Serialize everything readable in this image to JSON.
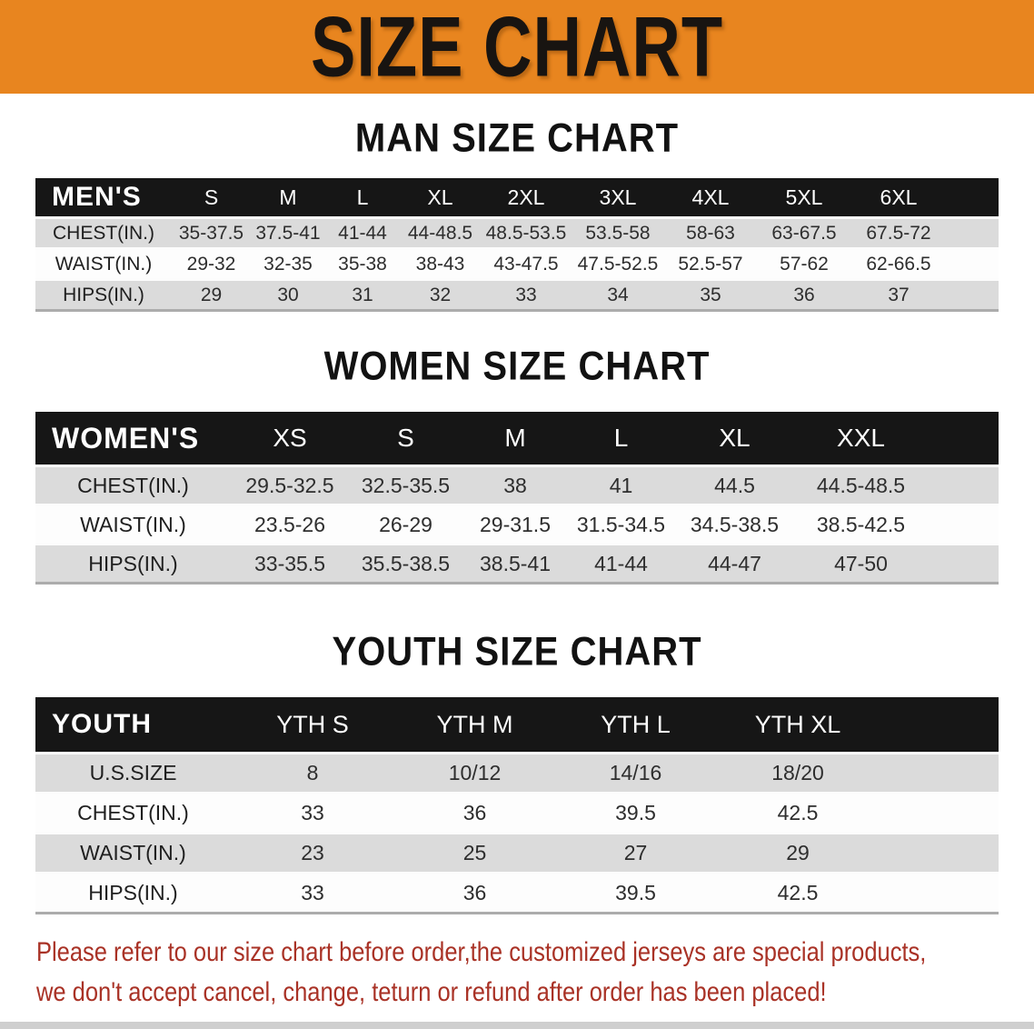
{
  "banner": {
    "title": "SIZE CHART"
  },
  "sections": [
    {
      "title": "MAN SIZE CHART",
      "table": {
        "header_label": "MEN'S",
        "sizes": [
          "S",
          "M",
          "L",
          "XL",
          "2XL",
          "3XL",
          "4XL",
          "5XL",
          "6XL"
        ],
        "rows": [
          {
            "label": "CHEST(IN.)",
            "values": [
              "35-37.5",
              "37.5-41",
              "41-44",
              "44-48.5",
              "48.5-53.5",
              "53.5-58",
              "58-63",
              "63-67.5",
              "67.5-72"
            ]
          },
          {
            "label": "WAIST(IN.)",
            "values": [
              "29-32",
              "32-35",
              "35-38",
              "38-43",
              "43-47.5",
              "47.5-52.5",
              "52.5-57",
              "57-62",
              "62-66.5"
            ]
          },
          {
            "label": "HIPS(IN.)",
            "values": [
              "29",
              "30",
              "31",
              "32",
              "33",
              "34",
              "35",
              "36",
              "37"
            ]
          }
        ]
      }
    },
    {
      "title": "WOMEN SIZE CHART",
      "table": {
        "header_label": "WOMEN'S",
        "sizes": [
          "XS",
          "S",
          "M",
          "L",
          "XL",
          "XXL"
        ],
        "rows": [
          {
            "label": "CHEST(IN.)",
            "values": [
              "29.5-32.5",
              "32.5-35.5",
              "38",
              "41",
              "44.5",
              "44.5-48.5"
            ]
          },
          {
            "label": "WAIST(IN.)",
            "values": [
              "23.5-26",
              "26-29",
              "29-31.5",
              "31.5-34.5",
              "34.5-38.5",
              "38.5-42.5"
            ]
          },
          {
            "label": "HIPS(IN.)",
            "values": [
              "33-35.5",
              "35.5-38.5",
              "38.5-41",
              "41-44",
              "44-47",
              "47-50"
            ]
          }
        ]
      }
    },
    {
      "title": "YOUTH SIZE CHART",
      "table": {
        "header_label": "YOUTH",
        "sizes": [
          "YTH S",
          "YTH M",
          "YTH L",
          "YTH XL"
        ],
        "rows": [
          {
            "label": "U.S.SIZE",
            "values": [
              "8",
              "10/12",
              "14/16",
              "18/20"
            ]
          },
          {
            "label": "CHEST(IN.)",
            "values": [
              "33",
              "36",
              "39.5",
              "42.5"
            ]
          },
          {
            "label": "WAIST(IN.)",
            "values": [
              "23",
              "25",
              "27",
              "29"
            ]
          },
          {
            "label": "HIPS(IN.)",
            "values": [
              "33",
              "36",
              "39.5",
              "42.5"
            ]
          }
        ]
      }
    }
  ],
  "footer": {
    "lines": [
      "Please refer to our size chart before order,the customized jerseys are special products,",
      "we don't accept cancel, change, teturn or refund after order has been placed!"
    ]
  },
  "colors": {
    "banner_bg": "#E8851F",
    "banner_text": "#181411",
    "header_bar": "#161616",
    "header_text": "#FFFFFF",
    "row_alt": "#DBDBDB",
    "row_light": "#FDFDFD",
    "body_text": "#2E2E2E",
    "footer_text": "#A93226",
    "bottom_strip": "#CFCFCF"
  }
}
